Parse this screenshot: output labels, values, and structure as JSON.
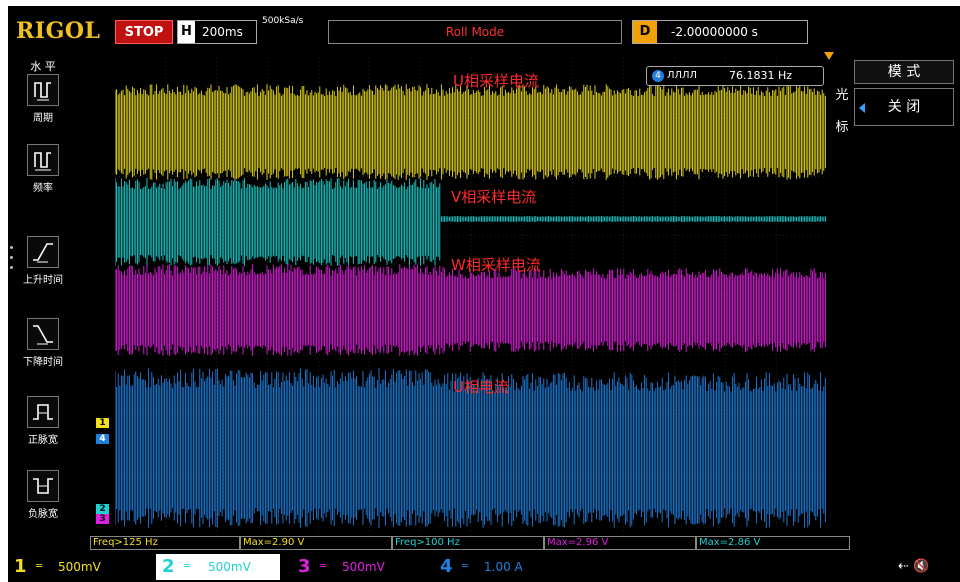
{
  "topbar": {
    "brand": "RIGOL",
    "run_state": "STOP",
    "timebase_label": "H",
    "timebase_value": "200ms",
    "sample_rate": "500kSa/s",
    "mode": "Roll Mode",
    "delay_label": "D",
    "delay_value": "-2.00000000 s"
  },
  "left_menu": {
    "title": "水 平",
    "items": [
      {
        "label": "周期",
        "icon": "period-icon"
      },
      {
        "label": "频率",
        "icon": "frequency-icon"
      },
      {
        "label": "上升时间",
        "icon": "rise-time-icon"
      },
      {
        "label": "下降时间",
        "icon": "fall-time-icon"
      },
      {
        "label": "正脉宽",
        "icon": "positive-width-icon"
      },
      {
        "label": "负脉宽",
        "icon": "negative-width-icon"
      }
    ]
  },
  "right_menu": {
    "side_top": "光",
    "side_bottom": "标",
    "mode_label": "模 式",
    "mode_value": "关 闭"
  },
  "freq_counter": {
    "channel": "4",
    "pulse_glyph": "ЛЛЛЛ",
    "value": "76.1831 Hz"
  },
  "waveform_labels": {
    "ch1": "U相采样电流",
    "ch2": "V相采样电流",
    "ch3": "W相采样电流",
    "ch4": "U相电流"
  },
  "channel_markers": [
    {
      "label": "1",
      "color": "#f0e020"
    },
    {
      "label": "4",
      "color": "#2080e0"
    },
    {
      "label": "2",
      "color": "#20d0d0"
    },
    {
      "label": "3",
      "color": "#e020e0"
    }
  ],
  "measurements": [
    {
      "text": "Freq>125 Hz",
      "color": "#f0e020"
    },
    {
      "text": "Max=2.90 V",
      "color": "#f0e020"
    },
    {
      "text": "Freq>100 Hz",
      "color": "#20d0d0"
    },
    {
      "text": "Max=2.96 V",
      "color": "#e020e0"
    },
    {
      "text": "Max=2.86 V",
      "color": "#20d0d0"
    }
  ],
  "channels": [
    {
      "num": "1",
      "coupling": "═",
      "scale": "500mV",
      "color": "#f0e020"
    },
    {
      "num": "2",
      "coupling": "═",
      "scale": "500mV",
      "color": "#20d0d0"
    },
    {
      "num": "3",
      "coupling": "═",
      "scale": "500mV",
      "color": "#e020e0"
    },
    {
      "num": "4",
      "coupling": "═",
      "scale": "1.00 A",
      "color": "#2080e0"
    }
  ],
  "status_icons": [
    "usb-icon",
    "speaker-muted-icon"
  ],
  "colors": {
    "ch1": "#f0e020",
    "ch2": "#20d0d0",
    "ch3": "#e020e0",
    "ch4": "#2080e0",
    "label_red": "#ff2a2a",
    "stop_red": "#c01010",
    "delay_orange": "#f0a000"
  }
}
